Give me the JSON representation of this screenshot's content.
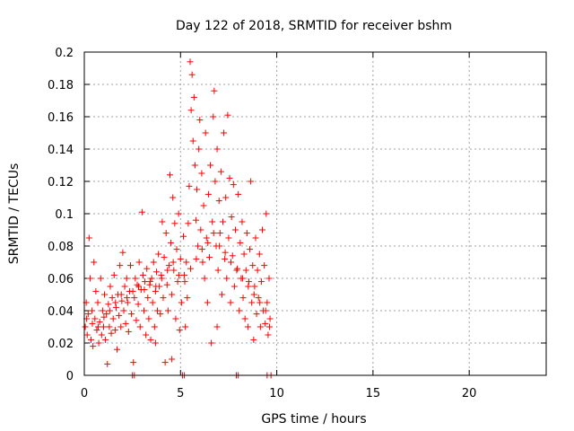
{
  "chart_data": {
    "type": "scatter",
    "title": "Day 122 of 2018, SRMTID for receiver bshm",
    "xlabel": "GPS time / hours",
    "ylabel": "SRMTID / TECUs",
    "xlim": [
      0,
      24
    ],
    "ylim": [
      0,
      0.2
    ],
    "grid": true,
    "marker": "+",
    "color": "#ff0000",
    "x_ticks": [
      0,
      5,
      10,
      15,
      20
    ],
    "x_tick_labels": [
      "0",
      "5",
      "10",
      "15",
      "20"
    ],
    "y_ticks": [
      0,
      0.02,
      0.04,
      0.06,
      0.08,
      0.1,
      0.12,
      0.14,
      0.16,
      0.18,
      0.2
    ],
    "y_tick_labels": [
      "0",
      "0.02",
      "0.04",
      "0.06",
      "0.08",
      "0.1",
      "0.12",
      "0.14",
      "0.16",
      "0.18",
      "0.2"
    ],
    "series": [
      {
        "name": "SRMTID",
        "points": [
          [
            0.05,
            0.03
          ],
          [
            0.1,
            0.045
          ],
          [
            0.15,
            0.025
          ],
          [
            0.2,
            0.038
          ],
          [
            0.25,
            0.085
          ],
          [
            0.3,
            0.06
          ],
          [
            0.35,
            0.022
          ],
          [
            0.4,
            0.04
          ],
          [
            0.45,
            0.018
          ],
          [
            0.5,
            0.07
          ],
          [
            0.55,
            0.035
          ],
          [
            0.6,
            0.052
          ],
          [
            0.65,
            0.028
          ],
          [
            0.7,
            0.045
          ],
          [
            0.75,
            0.02
          ],
          [
            0.8,
            0.033
          ],
          [
            0.85,
            0.06
          ],
          [
            0.9,
            0.025
          ],
          [
            0.95,
            0.04
          ],
          [
            1.0,
            0.03
          ],
          [
            1.05,
            0.05
          ],
          [
            1.1,
            0.022
          ],
          [
            1.15,
            0.038
          ],
          [
            1.2,
            0.007
          ],
          [
            1.25,
            0.044
          ],
          [
            1.3,
            0.03
          ],
          [
            1.35,
            0.055
          ],
          [
            1.4,
            0.026
          ],
          [
            1.45,
            0.048
          ],
          [
            1.5,
            0.035
          ],
          [
            1.55,
            0.062
          ],
          [
            1.6,
            0.028
          ],
          [
            1.65,
            0.042
          ],
          [
            1.7,
            0.016
          ],
          [
            1.75,
            0.05
          ],
          [
            1.8,
            0.037
          ],
          [
            1.85,
            0.068
          ],
          [
            1.9,
            0.03
          ],
          [
            1.95,
            0.046
          ],
          [
            2.0,
            0.076
          ],
          [
            2.05,
            0.04
          ],
          [
            2.1,
            0.055
          ],
          [
            2.15,
            0.032
          ],
          [
            2.2,
            0.06
          ],
          [
            2.25,
            0.045
          ],
          [
            2.3,
            0.027
          ],
          [
            2.35,
            0.052
          ],
          [
            2.4,
            0.068
          ],
          [
            2.45,
            0.038
          ],
          [
            2.5,
            0.0
          ],
          [
            2.55,
            0.008
          ],
          [
            2.6,
            0.048
          ],
          [
            2.65,
            0.06
          ],
          [
            2.7,
            0.034
          ],
          [
            2.75,
            0.056
          ],
          [
            2.8,
            0.044
          ],
          [
            2.85,
            0.07
          ],
          [
            2.9,
            0.03
          ],
          [
            2.95,
            0.053
          ],
          [
            3.0,
            0.101
          ],
          [
            3.05,
            0.062
          ],
          [
            3.1,
            0.04
          ],
          [
            3.15,
            0.058
          ],
          [
            3.2,
            0.025
          ],
          [
            3.25,
            0.066
          ],
          [
            3.3,
            0.048
          ],
          [
            3.35,
            0.035
          ],
          [
            3.4,
            0.056
          ],
          [
            3.45,
            0.022
          ],
          [
            3.5,
            0.06
          ],
          [
            3.55,
            0.045
          ],
          [
            3.6,
            0.07
          ],
          [
            3.65,
            0.03
          ],
          [
            3.7,
            0.052
          ],
          [
            3.75,
            0.064
          ],
          [
            3.8,
            0.04
          ],
          [
            3.85,
            0.075
          ],
          [
            3.9,
            0.055
          ],
          [
            3.95,
            0.038
          ],
          [
            4.0,
            0.062
          ],
          [
            4.05,
            0.095
          ],
          [
            4.1,
            0.048
          ],
          [
            4.15,
            0.073
          ],
          [
            4.2,
            0.008
          ],
          [
            4.25,
            0.088
          ],
          [
            4.3,
            0.056
          ],
          [
            4.35,
            0.04
          ],
          [
            4.4,
            0.068
          ],
          [
            4.45,
            0.124
          ],
          [
            4.5,
            0.082
          ],
          [
            4.55,
            0.05
          ],
          [
            4.6,
            0.11
          ],
          [
            4.65,
            0.065
          ],
          [
            4.7,
            0.094
          ],
          [
            4.75,
            0.035
          ],
          [
            4.8,
            0.078
          ],
          [
            4.85,
            0.058
          ],
          [
            4.9,
            0.1
          ],
          [
            4.95,
            0.028
          ],
          [
            5.0,
            0.072
          ],
          [
            5.05,
            0.045
          ],
          [
            5.1,
            0.0
          ],
          [
            5.15,
            0.086
          ],
          [
            5.2,
            0.062
          ],
          [
            5.25,
            0.03
          ],
          [
            5.3,
            0.07
          ],
          [
            5.35,
            0.048
          ],
          [
            5.4,
            0.094
          ],
          [
            5.45,
            0.117
          ],
          [
            5.5,
            0.194
          ],
          [
            5.55,
            0.164
          ],
          [
            5.6,
            0.186
          ],
          [
            5.65,
            0.145
          ],
          [
            5.7,
            0.172
          ],
          [
            5.75,
            0.13
          ],
          [
            5.8,
            0.096
          ],
          [
            5.85,
            0.115
          ],
          [
            5.9,
            0.08
          ],
          [
            5.95,
            0.14
          ],
          [
            6.0,
            0.158
          ],
          [
            6.05,
            0.09
          ],
          [
            6.1,
            0.125
          ],
          [
            6.15,
            0.07
          ],
          [
            6.2,
            0.105
          ],
          [
            6.25,
            0.06
          ],
          [
            6.3,
            0.15
          ],
          [
            6.35,
            0.085
          ],
          [
            6.4,
            0.045
          ],
          [
            6.45,
            0.112
          ],
          [
            6.5,
            0.073
          ],
          [
            6.55,
            0.13
          ],
          [
            6.6,
            0.02
          ],
          [
            6.65,
            0.095
          ],
          [
            6.7,
            0.16
          ],
          [
            6.75,
            0.176
          ],
          [
            6.8,
            0.12
          ],
          [
            6.85,
            0.08
          ],
          [
            6.9,
            0.14
          ],
          [
            6.95,
            0.065
          ],
          [
            7.0,
            0.108
          ],
          [
            7.05,
            0.088
          ],
          [
            7.1,
            0.126
          ],
          [
            7.15,
            0.05
          ],
          [
            7.2,
            0.095
          ],
          [
            7.25,
            0.15
          ],
          [
            7.3,
            0.072
          ],
          [
            7.35,
            0.11
          ],
          [
            7.4,
            0.06
          ],
          [
            7.45,
            0.161
          ],
          [
            7.5,
            0.085
          ],
          [
            7.55,
            0.122
          ],
          [
            7.6,
            0.045
          ],
          [
            7.65,
            0.098
          ],
          [
            7.7,
            0.074
          ],
          [
            7.75,
            0.118
          ],
          [
            7.8,
            0.055
          ],
          [
            7.85,
            0.09
          ],
          [
            7.9,
            0.0
          ],
          [
            7.95,
            0.066
          ],
          [
            8.0,
            0.112
          ],
          [
            8.05,
            0.04
          ],
          [
            8.1,
            0.082
          ],
          [
            8.15,
            0.06
          ],
          [
            8.2,
            0.095
          ],
          [
            8.25,
            0.048
          ],
          [
            8.3,
            0.075
          ],
          [
            8.35,
            0.035
          ],
          [
            8.4,
            0.065
          ],
          [
            8.45,
            0.088
          ],
          [
            8.5,
            0.03
          ],
          [
            8.55,
            0.058
          ],
          [
            8.6,
            0.078
          ],
          [
            8.65,
            0.12
          ],
          [
            8.7,
            0.045
          ],
          [
            8.75,
            0.068
          ],
          [
            8.8,
            0.022
          ],
          [
            8.85,
            0.055
          ],
          [
            8.9,
            0.085
          ],
          [
            8.95,
            0.038
          ],
          [
            9.0,
            0.065
          ],
          [
            9.05,
            0.048
          ],
          [
            9.1,
            0.075
          ],
          [
            9.15,
            0.03
          ],
          [
            9.2,
            0.058
          ],
          [
            9.25,
            0.09
          ],
          [
            9.3,
            0.04
          ],
          [
            9.35,
            0.068
          ],
          [
            9.4,
            0.032
          ],
          [
            9.45,
            0.1
          ],
          [
            9.5,
            0.045
          ],
          [
            9.55,
            0.025
          ],
          [
            9.6,
            0.06
          ],
          [
            9.65,
            0.035
          ],
          [
            9.7,
            0.0
          ],
          [
            0.12,
            0.035
          ],
          [
            0.42,
            0.032
          ],
          [
            0.72,
            0.03
          ],
          [
            1.02,
            0.036
          ],
          [
            1.32,
            0.04
          ],
          [
            1.62,
            0.045
          ],
          [
            1.92,
            0.05
          ],
          [
            2.22,
            0.048
          ],
          [
            2.52,
            0.052
          ],
          [
            2.82,
            0.055
          ],
          [
            3.12,
            0.053
          ],
          [
            3.42,
            0.058
          ],
          [
            3.72,
            0.055
          ],
          [
            4.02,
            0.06
          ],
          [
            4.32,
            0.065
          ],
          [
            4.62,
            0.07
          ],
          [
            4.92,
            0.062
          ],
          [
            5.22,
            0.058
          ],
          [
            5.52,
            0.066
          ],
          [
            5.82,
            0.072
          ],
          [
            6.12,
            0.078
          ],
          [
            6.42,
            0.082
          ],
          [
            6.72,
            0.088
          ],
          [
            7.02,
            0.08
          ],
          [
            7.32,
            0.076
          ],
          [
            7.62,
            0.07
          ],
          [
            7.92,
            0.065
          ],
          [
            8.22,
            0.06
          ],
          [
            8.52,
            0.055
          ],
          [
            8.82,
            0.05
          ],
          [
            9.12,
            0.045
          ],
          [
            9.42,
            0.04
          ],
          [
            9.62,
            0.03
          ],
          [
            2.6,
            0.0
          ],
          [
            5.2,
            0.0
          ],
          [
            8.0,
            0.0
          ],
          [
            9.5,
            0.0
          ],
          [
            3.7,
            0.02
          ],
          [
            4.55,
            0.01
          ],
          [
            6.9,
            0.03
          ]
        ]
      }
    ]
  }
}
